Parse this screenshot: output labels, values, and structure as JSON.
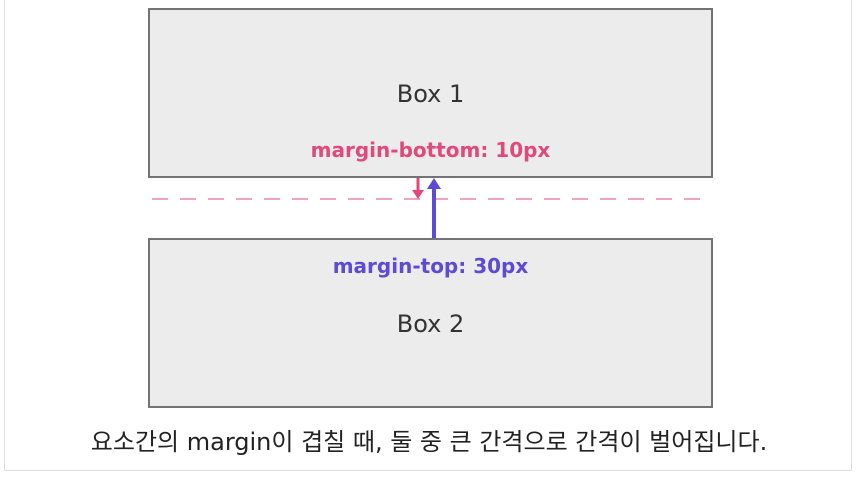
{
  "box1": {
    "label": "Box 1",
    "margin_label": "margin-bottom: 10px"
  },
  "box2": {
    "label": "Box 2",
    "margin_label": "margin-top: 30px"
  },
  "caption": "요소간의 margin이 겹칠 때, 둘 중 큰 간격으로 간격이 벌어집니다.",
  "colors": {
    "margin_bottom": "#e0497a",
    "margin_top": "#5b4bd6",
    "dashed_line": "#f2a3bc",
    "box_fill": "#ececec",
    "box_border": "#737373"
  }
}
